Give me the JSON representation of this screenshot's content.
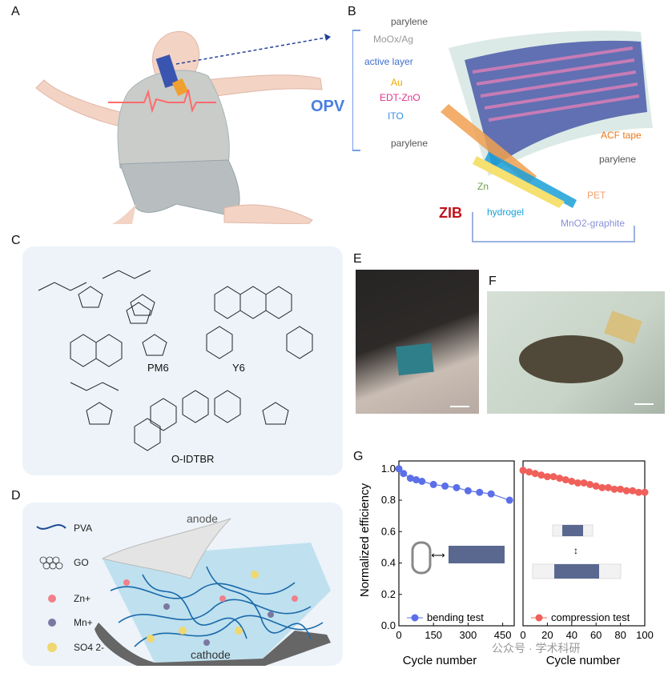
{
  "panels": {
    "a": "A",
    "b": "B",
    "c": "C",
    "d": "D",
    "e": "E",
    "f": "F",
    "g": "G"
  },
  "panel_b": {
    "opv_label": "OPV",
    "zib_label": "ZIB",
    "layers_left": [
      "parylene",
      "MoOx/Ag",
      "active layer",
      "Au",
      "EDT-ZnO",
      "ITO",
      "parylene"
    ],
    "layers_right": [
      "ACF tape",
      "parylene",
      "PET",
      "MnO2-graphite",
      "hydrogel",
      "Zn"
    ],
    "colors": {
      "opv": "#4a7fe0",
      "zib": "#c0121b",
      "moox": "#9a9a9a",
      "active": "#3f6fd0",
      "au": "#f0a800",
      "edt": "#e0348a",
      "ito": "#3a8fe0",
      "acf": "#f07818",
      "pet": "#f0a070",
      "mno2": "#8a90d8",
      "hydrogel": "#1aa0d8",
      "zn": "#6aa04a"
    }
  },
  "panel_c": {
    "molecules": [
      "PM6",
      "Y6",
      "O-IDTBR"
    ]
  },
  "panel_d": {
    "legend": [
      "PVA",
      "GO",
      "Zn+",
      "Mn+",
      "SO4 2-"
    ],
    "labels": {
      "anode": "anode",
      "cathode": "cathode"
    }
  },
  "chart_data": [
    {
      "type": "scatter",
      "title": "",
      "xlabel": "Cycle number",
      "ylabel": "Normalized efficiency",
      "xticks": [
        "0",
        "150",
        "300",
        "450"
      ],
      "xlim": [
        0,
        500
      ],
      "ylim": [
        0,
        1.05
      ],
      "yticks": [
        "0.0",
        "0.2",
        "0.4",
        "0.6",
        "0.8",
        "1.0"
      ],
      "series": [
        {
          "name": "bending test",
          "color": "#5a6fe8",
          "x": [
            0,
            20,
            50,
            75,
            100,
            150,
            200,
            250,
            300,
            350,
            400,
            480
          ],
          "y": [
            1.0,
            0.97,
            0.94,
            0.93,
            0.92,
            0.9,
            0.89,
            0.88,
            0.86,
            0.85,
            0.84,
            0.8
          ]
        }
      ]
    },
    {
      "type": "scatter",
      "title": "",
      "xlabel": "Cycle number",
      "xticks": [
        "0",
        "20",
        "40",
        "60",
        "80",
        "100"
      ],
      "xlim": [
        0,
        100
      ],
      "ylim": [
        0,
        1.05
      ],
      "series": [
        {
          "name": "compression test",
          "color": "#f0605a",
          "x": [
            0,
            5,
            10,
            15,
            20,
            25,
            30,
            35,
            40,
            45,
            50,
            55,
            60,
            65,
            70,
            75,
            80,
            85,
            90,
            95,
            100
          ],
          "y": [
            0.99,
            0.98,
            0.97,
            0.96,
            0.95,
            0.95,
            0.94,
            0.93,
            0.92,
            0.91,
            0.91,
            0.9,
            0.89,
            0.88,
            0.88,
            0.87,
            0.87,
            0.86,
            0.86,
            0.85,
            0.85
          ]
        }
      ]
    }
  ],
  "watermark": "公众号 · 学术科研"
}
